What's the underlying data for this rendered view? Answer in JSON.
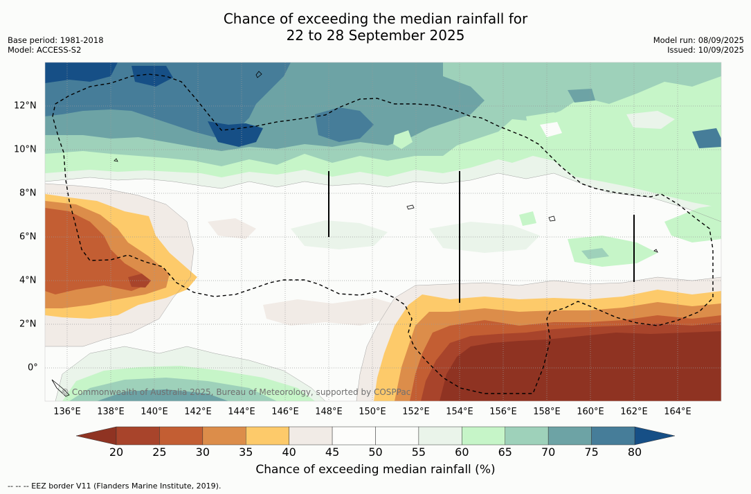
{
  "title": {
    "line1": "Chance of exceeding the median rainfall for",
    "line2": "22 to 28 September 2025"
  },
  "info": {
    "base_period": "Base period: 1981-2018",
    "model": "Model: ACCESS-S2",
    "model_run": "Model run: 08/09/2025",
    "issued": "Issued: 10/09/2025"
  },
  "map": {
    "lon_labels": [
      "136°E",
      "138°E",
      "140°E",
      "142°E",
      "144°E",
      "146°E",
      "148°E",
      "150°E",
      "152°E",
      "154°E",
      "156°E",
      "158°E",
      "160°E",
      "162°E",
      "164°E"
    ],
    "lat_labels": [
      "12°N",
      "10°N",
      "8°N",
      "6°N",
      "4°N",
      "2°N",
      "0°"
    ],
    "credit": "© Commonwealth of Australia 2025, Bureau of Meteorology, supported by COSPPac",
    "extent": {
      "lon_min": 135.0,
      "lon_max": 166.0,
      "lat_min": -1.5,
      "lat_max": 14.0
    }
  },
  "colorbar": {
    "ticks": [
      "20",
      "25",
      "30",
      "35",
      "40",
      "45",
      "50",
      "55",
      "60",
      "65",
      "70",
      "75",
      "80"
    ],
    "title": "Chance of exceeding median rainfall (%)",
    "below_color": "#8f3322",
    "above_color": "#164f86",
    "colors": [
      "#a8442b",
      "#c35e33",
      "#dc8d4a",
      "#fdca6a",
      "#f1ebe6",
      "#fdfdfb",
      "#fbfcfa",
      "#eaf4ea",
      "#c6f5c8",
      "#9ed1ba",
      "#6da3a5",
      "#467d99"
    ]
  },
  "footer": "--  --  -- EEZ border V11 (Flanders Marine Institute, 2019)."
}
